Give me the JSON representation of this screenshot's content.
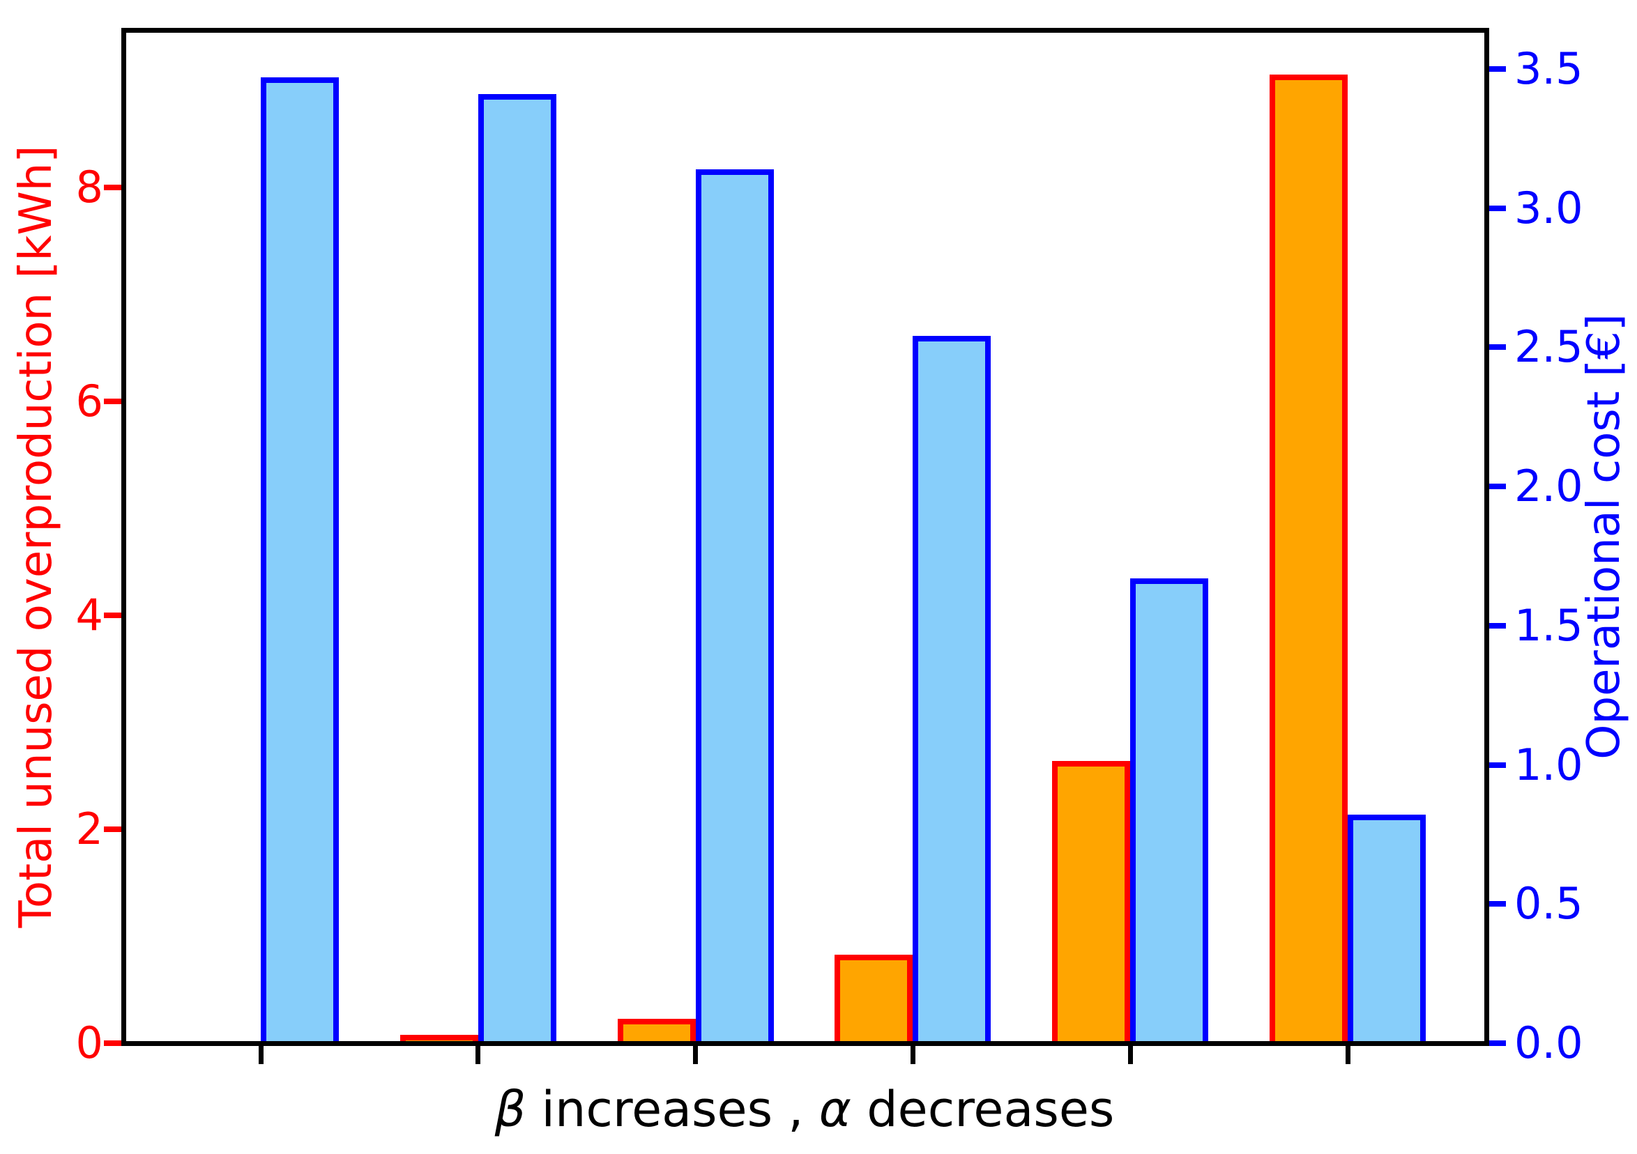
{
  "chart_data": {
    "type": "bar",
    "title": "",
    "xlabel": "β increases , α decreases",
    "xlabel_parts": [
      {
        "text": "β",
        "italic": true
      },
      {
        "text": " increases , ",
        "italic": false
      },
      {
        "text": "α",
        "italic": true
      },
      {
        "text": " decreases",
        "italic": false
      }
    ],
    "n_groups": 6,
    "x_tick_labels": [
      "",
      "",
      "",
      "",
      "",
      ""
    ],
    "grid": false,
    "legend": "none",
    "series": [
      {
        "name": "Total unused overproduction [kWh]",
        "axis": "left",
        "fill_color": "#FFA500",
        "edge_color": "#FF0000",
        "values": [
          0.0,
          0.08,
          0.23,
          0.83,
          2.64,
          9.05
        ]
      },
      {
        "name": "Operational cost [€]",
        "axis": "right",
        "fill_color": "#87CEFA",
        "edge_color": "#0000FF",
        "values": [
          3.47,
          3.41,
          3.14,
          2.54,
          1.67,
          0.82
        ]
      }
    ],
    "left_axis": {
      "label": "Total unused overproduction [kWh]",
      "color": "#FF0000",
      "tick_values": [
        0,
        2,
        4,
        6,
        8
      ],
      "tick_labels": [
        "0",
        "2",
        "4",
        "6",
        "8"
      ],
      "range": [
        0,
        9.47
      ]
    },
    "right_axis": {
      "label": "Operational cost [€]",
      "color": "#0000FF",
      "tick_values": [
        0.0,
        0.5,
        1.0,
        1.5,
        2.0,
        2.5,
        3.0,
        3.5
      ],
      "tick_labels": [
        "0.0",
        "0.5",
        "1.0",
        "1.5",
        "2.0",
        "2.5",
        "3.0",
        "3.5"
      ],
      "range": [
        0,
        3.64
      ]
    }
  }
}
